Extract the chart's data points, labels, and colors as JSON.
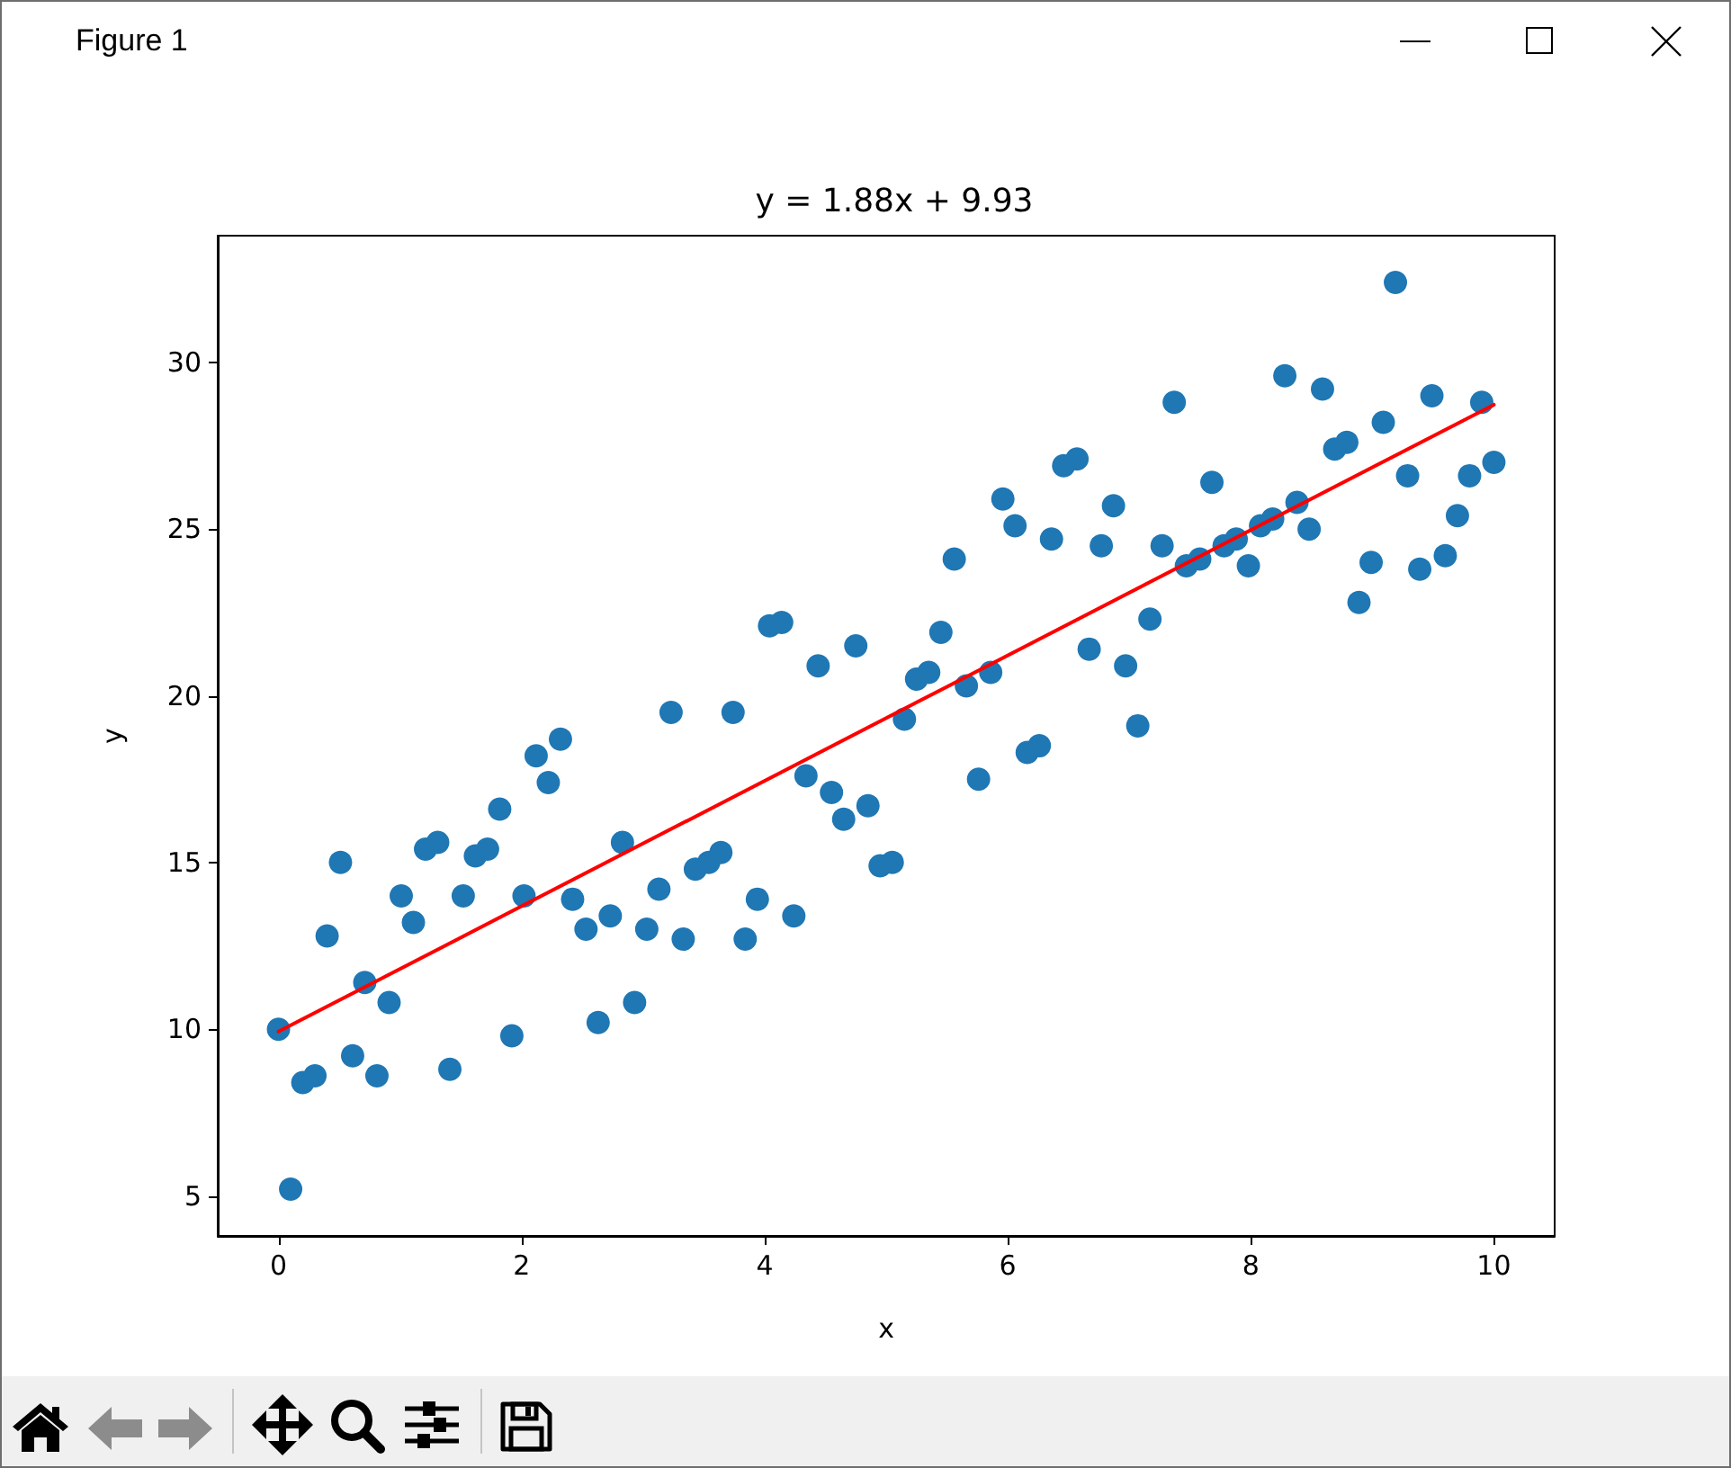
{
  "chart_data": {
    "type": "scatter",
    "title": "y = 1.88x + 9.93",
    "xlabel": "x",
    "ylabel": "y",
    "annotations": [
      "Figure 1"
    ],
    "series": [
      {
        "color": "#1f77b4",
        "x": [
          0,
          0.1,
          0.2,
          0.3,
          0.4,
          0.51,
          0.61,
          0.71,
          0.81,
          0.91,
          1.01,
          1.11,
          1.21,
          1.31,
          1.41,
          1.52,
          1.62,
          1.72,
          1.82,
          1.92,
          2.02,
          2.12,
          2.22,
          2.32,
          2.42,
          2.53,
          2.63,
          2.73,
          2.83,
          2.93,
          3.03,
          3.13,
          3.23,
          3.33,
          3.43,
          3.54,
          3.64,
          3.74,
          3.84,
          3.94,
          4.04,
          4.14,
          4.24,
          4.34,
          4.44,
          4.55,
          4.65,
          4.75,
          4.85,
          4.95,
          5.05,
          5.15,
          5.25,
          5.35,
          5.45,
          5.56,
          5.66,
          5.76,
          5.86,
          5.96,
          6.06,
          6.16,
          6.26,
          6.36,
          6.46,
          6.57,
          6.67,
          6.77,
          6.87,
          6.97,
          7.07,
          7.17,
          7.27,
          7.37,
          7.47,
          7.58,
          7.68,
          7.78,
          7.88,
          7.98,
          8.08,
          8.18,
          8.28,
          8.38,
          8.48,
          8.59,
          8.69,
          8.79,
          8.89,
          8.99,
          9.09,
          9.19,
          9.29,
          9.39,
          9.49,
          9.6,
          9.7,
          9.8,
          9.9,
          10
        ],
        "values": [
          10.0,
          5.2,
          8.4,
          8.6,
          12.8,
          15.0,
          9.2,
          11.4,
          8.6,
          10.8,
          14.0,
          13.2,
          15.4,
          15.6,
          8.8,
          14.0,
          15.2,
          15.4,
          16.6,
          9.8,
          14.0,
          18.2,
          17.4,
          18.7,
          13.9,
          13.0,
          10.2,
          13.4,
          15.6,
          10.8,
          13.0,
          14.2,
          19.5,
          12.7,
          14.8,
          15.0,
          15.3,
          19.5,
          12.7,
          13.9,
          22.1,
          22.2,
          13.4,
          17.6,
          20.9,
          17.1,
          16.3,
          21.5,
          16.7,
          14.9,
          15.0,
          19.3,
          20.5,
          20.7,
          21.9,
          24.1,
          20.3,
          17.5,
          20.7,
          25.9,
          25.1,
          18.3,
          18.5,
          24.7,
          26.9,
          27.1,
          21.4,
          24.5,
          25.7,
          20.9,
          19.1,
          22.3,
          24.5,
          28.8,
          23.9,
          24.1,
          26.4,
          24.5,
          24.7,
          23.9,
          25.1,
          25.3,
          29.6,
          25.8,
          25.0,
          29.2,
          27.4,
          27.6,
          22.8,
          24.0,
          28.2,
          32.4,
          26.6,
          23.8,
          29.0,
          24.2,
          25.4,
          26.6,
          28.8,
          27.0
        ]
      },
      {
        "type": "line",
        "color": "#ff0000",
        "marker": "none",
        "x": [
          0,
          10
        ],
        "values": [
          9.93,
          28.73
        ]
      }
    ],
    "xlim": [
      -0.5,
      10.5
    ],
    "ylim": [
      3.8,
      33.8
    ],
    "xticks": [
      0,
      2,
      4,
      6,
      8,
      10
    ],
    "yticks": [
      5,
      10,
      15,
      20,
      25,
      30
    ],
    "grid": false,
    "marker": "circle"
  }
}
